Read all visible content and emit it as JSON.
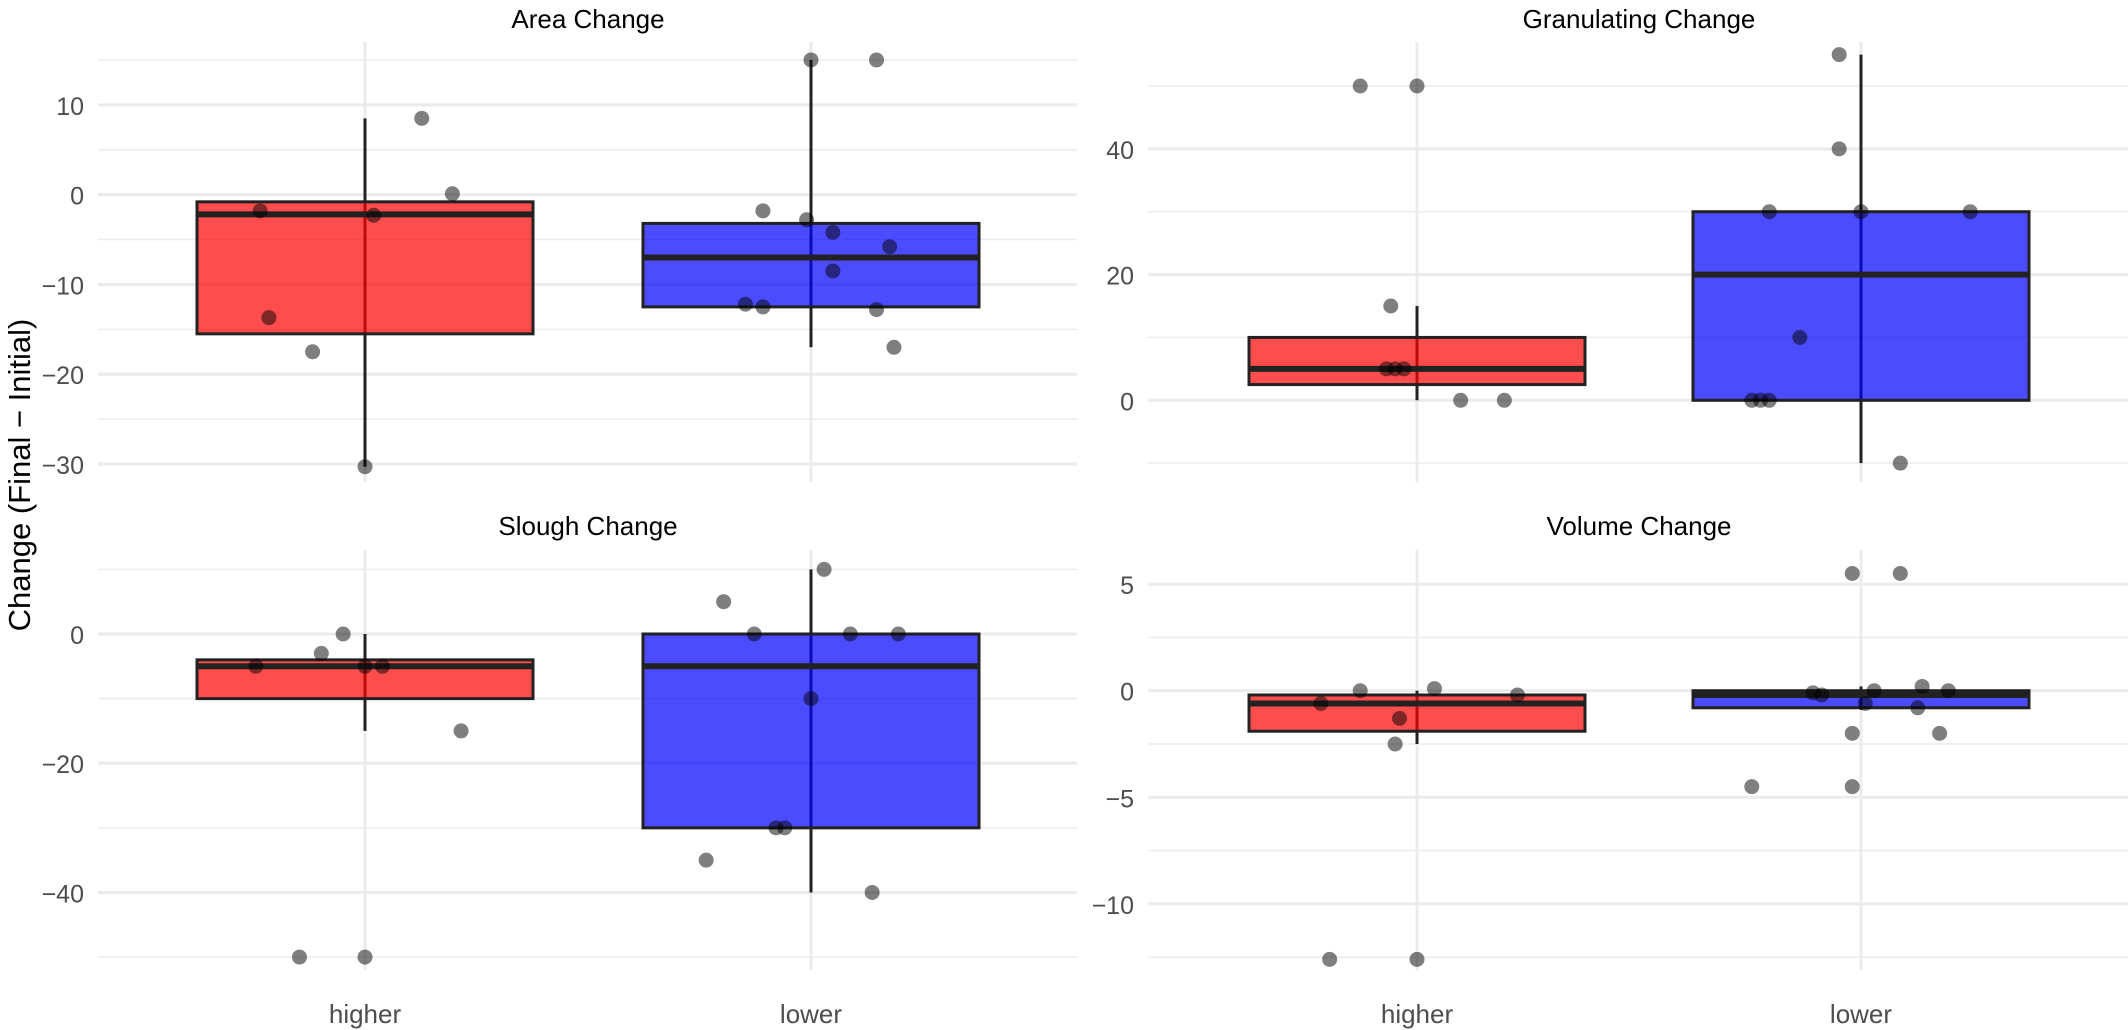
{
  "ylabel": "Change (Final − Initial)",
  "colors": {
    "higher": "#ff0000",
    "lower": "#0000ff",
    "grid": "#ebebeb",
    "point": "#000000"
  },
  "chart_data": [
    {
      "type": "box",
      "title": "Area Change",
      "categories": [
        "higher",
        "lower"
      ],
      "ylim": [
        -32,
        17
      ],
      "yticks": [
        "10",
        "0",
        "−10",
        "−20",
        "−30"
      ],
      "ytick_values": [
        10,
        0,
        -10,
        -20,
        -30
      ],
      "boxes": [
        {
          "group": "higher",
          "q1": -15.5,
          "median": -2.2,
          "q3": -0.8,
          "whisker_low": -30.3,
          "whisker_high": 8.5
        },
        {
          "group": "lower",
          "q1": -12.5,
          "median": -7,
          "q3": -3.2,
          "whisker_low": -17,
          "whisker_high": 15
        }
      ],
      "points": [
        {
          "group": "higher",
          "x_offset": -0.24,
          "y": -1.8
        },
        {
          "group": "higher",
          "x_offset": -0.22,
          "y": -13.7
        },
        {
          "group": "higher",
          "x_offset": -0.12,
          "y": -17.5
        },
        {
          "group": "higher",
          "x_offset": 0.02,
          "y": -2.3
        },
        {
          "group": "higher",
          "x_offset": 0.13,
          "y": 8.5
        },
        {
          "group": "higher",
          "x_offset": 0.2,
          "y": 0.1
        },
        {
          "group": "higher",
          "x_offset": 0.0,
          "y": -30.3
        },
        {
          "group": "lower",
          "x_offset": -0.11,
          "y": -1.8
        },
        {
          "group": "lower",
          "x_offset": -0.01,
          "y": -2.8
        },
        {
          "group": "lower",
          "x_offset": 0.05,
          "y": -4.2
        },
        {
          "group": "lower",
          "x_offset": 0.05,
          "y": -8.5
        },
        {
          "group": "lower",
          "x_offset": 0.18,
          "y": -5.8
        },
        {
          "group": "lower",
          "x_offset": -0.15,
          "y": -12.2
        },
        {
          "group": "lower",
          "x_offset": -0.11,
          "y": -12.5
        },
        {
          "group": "lower",
          "x_offset": 0.15,
          "y": -12.8
        },
        {
          "group": "lower",
          "x_offset": 0.19,
          "y": -17
        },
        {
          "group": "lower",
          "x_offset": 0.0,
          "y": 15
        },
        {
          "group": "lower",
          "x_offset": 0.15,
          "y": 15
        }
      ]
    },
    {
      "type": "box",
      "title": "Granulating Change",
      "categories": [
        "higher",
        "lower"
      ],
      "ylim": [
        -13,
        57
      ],
      "yticks": [
        "40",
        "20",
        "0"
      ],
      "ytick_values": [
        40,
        20,
        0
      ],
      "boxes": [
        {
          "group": "higher",
          "q1": 2.5,
          "median": 5,
          "q3": 10,
          "whisker_low": 0,
          "whisker_high": 15
        },
        {
          "group": "lower",
          "q1": 0,
          "median": 20,
          "q3": 30,
          "whisker_low": -10,
          "whisker_high": 55
        }
      ],
      "points": [
        {
          "group": "higher",
          "x_offset": -0.13,
          "y": 50
        },
        {
          "group": "higher",
          "x_offset": 0.0,
          "y": 50
        },
        {
          "group": "higher",
          "x_offset": -0.06,
          "y": 15
        },
        {
          "group": "higher",
          "x_offset": -0.07,
          "y": 5
        },
        {
          "group": "higher",
          "x_offset": -0.05,
          "y": 5
        },
        {
          "group": "higher",
          "x_offset": -0.03,
          "y": 5
        },
        {
          "group": "higher",
          "x_offset": 0.1,
          "y": 0
        },
        {
          "group": "higher",
          "x_offset": 0.2,
          "y": 0
        },
        {
          "group": "lower",
          "x_offset": -0.05,
          "y": 55
        },
        {
          "group": "lower",
          "x_offset": -0.05,
          "y": 40
        },
        {
          "group": "lower",
          "x_offset": -0.21,
          "y": 30
        },
        {
          "group": "lower",
          "x_offset": 0.0,
          "y": 30
        },
        {
          "group": "lower",
          "x_offset": 0.25,
          "y": 30
        },
        {
          "group": "lower",
          "x_offset": -0.14,
          "y": 10
        },
        {
          "group": "lower",
          "x_offset": -0.25,
          "y": 0
        },
        {
          "group": "lower",
          "x_offset": -0.23,
          "y": 0
        },
        {
          "group": "lower",
          "x_offset": -0.21,
          "y": 0
        },
        {
          "group": "lower",
          "x_offset": 0.09,
          "y": -10
        }
      ]
    },
    {
      "type": "box",
      "title": "Slough Change",
      "categories": [
        "higher",
        "lower"
      ],
      "ylim": [
        -52,
        13
      ],
      "yticks": [
        "0",
        "−20",
        "−40"
      ],
      "ytick_values": [
        0,
        -20,
        -40
      ],
      "boxes": [
        {
          "group": "higher",
          "q1": -10,
          "median": -5,
          "q3": -4,
          "whisker_low": -15,
          "whisker_high": 0
        },
        {
          "group": "lower",
          "q1": -30,
          "median": -5,
          "q3": 0,
          "whisker_low": -40,
          "whisker_high": 10
        }
      ],
      "points": [
        {
          "group": "higher",
          "x_offset": -0.25,
          "y": -5
        },
        {
          "group": "higher",
          "x_offset": -0.1,
          "y": -3
        },
        {
          "group": "higher",
          "x_offset": -0.05,
          "y": 0
        },
        {
          "group": "higher",
          "x_offset": 0.0,
          "y": -5
        },
        {
          "group": "higher",
          "x_offset": 0.04,
          "y": -5
        },
        {
          "group": "higher",
          "x_offset": 0.22,
          "y": -15
        },
        {
          "group": "higher",
          "x_offset": -0.15,
          "y": -50
        },
        {
          "group": "higher",
          "x_offset": 0.0,
          "y": -50
        },
        {
          "group": "lower",
          "x_offset": -0.2,
          "y": 5
        },
        {
          "group": "lower",
          "x_offset": -0.13,
          "y": 0
        },
        {
          "group": "lower",
          "x_offset": 0.09,
          "y": 0
        },
        {
          "group": "lower",
          "x_offset": 0.2,
          "y": 0
        },
        {
          "group": "lower",
          "x_offset": 0.0,
          "y": -10
        },
        {
          "group": "lower",
          "x_offset": -0.08,
          "y": -30
        },
        {
          "group": "lower",
          "x_offset": -0.06,
          "y": -30
        },
        {
          "group": "lower",
          "x_offset": -0.24,
          "y": -35
        },
        {
          "group": "lower",
          "x_offset": 0.14,
          "y": -40
        },
        {
          "group": "lower",
          "x_offset": 0.03,
          "y": 10
        }
      ]
    },
    {
      "type": "box",
      "title": "Volume Change",
      "categories": [
        "higher",
        "lower"
      ],
      "ylim": [
        -13.1,
        6.6
      ],
      "yticks": [
        "5",
        "0",
        "−5",
        "−10"
      ],
      "ytick_values": [
        5,
        0,
        -5,
        -10
      ],
      "boxes": [
        {
          "group": "higher",
          "q1": -1.9,
          "median": -0.6,
          "q3": -0.2,
          "whisker_low": -2.5,
          "whisker_high": 0
        },
        {
          "group": "lower",
          "q1": -0.8,
          "median": -0.2,
          "q3": 0,
          "whisker_low": -0.9,
          "whisker_high": 0.2
        }
      ],
      "points": [
        {
          "group": "higher",
          "x_offset": -0.22,
          "y": -0.6
        },
        {
          "group": "higher",
          "x_offset": -0.13,
          "y": 0
        },
        {
          "group": "higher",
          "x_offset": -0.04,
          "y": -1.3
        },
        {
          "group": "higher",
          "x_offset": -0.05,
          "y": -2.5
        },
        {
          "group": "higher",
          "x_offset": 0.04,
          "y": 0.1
        },
        {
          "group": "higher",
          "x_offset": 0.23,
          "y": -0.2
        },
        {
          "group": "higher",
          "x_offset": -0.2,
          "y": -12.6
        },
        {
          "group": "higher",
          "x_offset": 0.0,
          "y": -12.6
        },
        {
          "group": "lower",
          "x_offset": -0.11,
          "y": -0.1
        },
        {
          "group": "lower",
          "x_offset": -0.09,
          "y": -0.2
        },
        {
          "group": "lower",
          "x_offset": 0.03,
          "y": 0
        },
        {
          "group": "lower",
          "x_offset": 0.01,
          "y": -0.6
        },
        {
          "group": "lower",
          "x_offset": 0.14,
          "y": 0.2
        },
        {
          "group": "lower",
          "x_offset": 0.13,
          "y": -0.8
        },
        {
          "group": "lower",
          "x_offset": 0.2,
          "y": 0
        },
        {
          "group": "lower",
          "x_offset": -0.02,
          "y": -2
        },
        {
          "group": "lower",
          "x_offset": 0.18,
          "y": -2
        },
        {
          "group": "lower",
          "x_offset": -0.25,
          "y": -4.5
        },
        {
          "group": "lower",
          "x_offset": -0.02,
          "y": -4.5
        },
        {
          "group": "lower",
          "x_offset": -0.02,
          "y": 5.5
        },
        {
          "group": "lower",
          "x_offset": 0.09,
          "y": 5.5
        }
      ]
    }
  ]
}
